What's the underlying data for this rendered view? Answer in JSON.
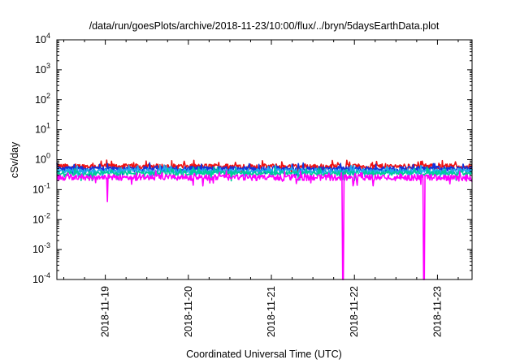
{
  "chart_data": {
    "type": "line",
    "title": "/data/run/goesPlots/archive/2018-11-23/10:00/flux/../bryn/5daysEarthData.plot",
    "xlabel": "Coordinated Universal Time (UTC)",
    "ylabel": "cSv/day",
    "yscale": "log",
    "ylim": [
      0.0001,
      10000
    ],
    "xlim": [
      "2018-11-18T10:00",
      "2018-11-23T10:00"
    ],
    "x_ticks": [
      "2018-11-19",
      "2018-11-20",
      "2018-11-21",
      "2018-11-22",
      "2018-11-23"
    ],
    "y_ticks": [
      {
        "base": "10",
        "exp": "-4",
        "value": 0.0001
      },
      {
        "base": "10",
        "exp": "-3",
        "value": 0.001
      },
      {
        "base": "10",
        "exp": "-2",
        "value": 0.01
      },
      {
        "base": "10",
        "exp": "-1",
        "value": 0.1
      },
      {
        "base": "10",
        "exp": "0",
        "value": 1
      },
      {
        "base": "10",
        "exp": "1",
        "value": 10
      },
      {
        "base": "10",
        "exp": "2",
        "value": 100
      },
      {
        "base": "10",
        "exp": "3",
        "value": 1000
      },
      {
        "base": "10",
        "exp": "4",
        "value": 10000
      }
    ],
    "grid": false,
    "legend": "none",
    "series": [
      {
        "color": "#ee1111",
        "base": 0.6,
        "amp": 0.12
      },
      {
        "color": "#1133dd",
        "base": 0.5,
        "amp": 0.1
      },
      {
        "color": "#22aaee",
        "base": 0.42,
        "amp": 0.08
      },
      {
        "color": "#00cc99",
        "base": 0.36,
        "amp": 0.06
      },
      {
        "color": "#ff00ff",
        "base": 0.26,
        "amp": 0.06
      }
    ],
    "dropouts": [
      {
        "series": 4,
        "x": "2018-11-21T20:30",
        "value": 0.0001
      },
      {
        "series": 4,
        "x": "2018-11-22T20:00",
        "value": 0.0001
      },
      {
        "series": 4,
        "x": "2018-11-19T00:30",
        "value": 0.04
      }
    ]
  }
}
